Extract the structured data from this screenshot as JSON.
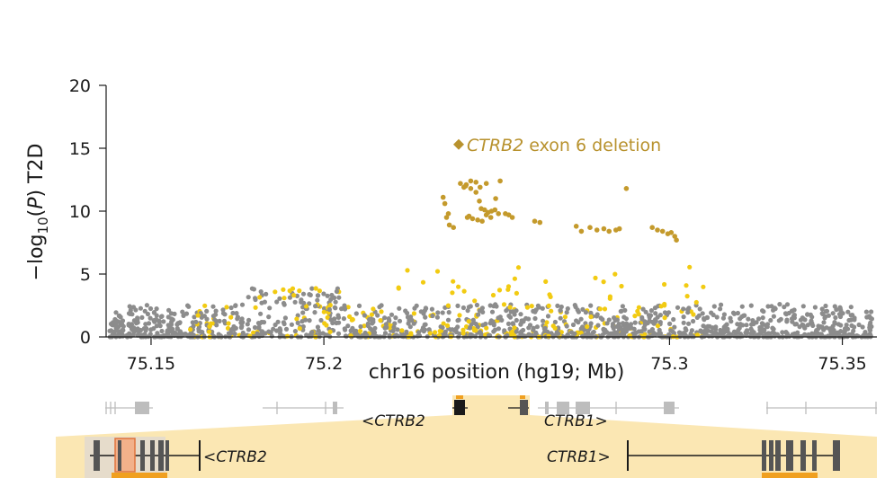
{
  "chart_data": {
    "type": "scatter",
    "xlabel": "chr16 position (hg19; Mb)",
    "ylabel_parts": {
      "prefix": "−log",
      "sub": "10",
      "paren_open": "(",
      "italic": "P",
      "suffix": ") T2D"
    },
    "xlim": [
      75.137,
      75.36
    ],
    "ylim": [
      0,
      20
    ],
    "xticks": [
      75.15,
      75.2,
      75.3,
      75.35
    ],
    "xtick_labels": [
      "75.15",
      "75.2",
      "75.3",
      "75.35"
    ],
    "yticks": [
      0,
      5,
      10,
      15,
      20
    ],
    "ytick_labels": [
      "0",
      "5",
      "10",
      "15",
      "20"
    ],
    "colors": {
      "background_variant": "#8c8c8c",
      "lowld_variant": "#f2cb12",
      "highld_variant": "#c49a2c",
      "annotation": "#b8922e",
      "gene_band": "#fbe7b3",
      "exon": "#555555"
    },
    "annotation": {
      "text_italic": "CTRB2",
      "text_rest": " exon 6 deletion",
      "x": 75.239,
      "y": 15.3
    },
    "highlighted_series": [
      {
        "x": [
          75.2345,
          75.235,
          75.2355,
          75.236,
          75.2363,
          75.2375,
          75.2395,
          75.241,
          75.2405,
          75.2412,
          75.2425,
          75.244,
          75.2452,
          75.247,
          75.2415,
          75.242,
          75.243,
          75.2445,
          75.245,
          75.2458,
          75.2465,
          75.2475,
          75.2485,
          75.2495,
          75.2505,
          75.2425,
          75.244,
          75.2455,
          75.247,
          75.2483,
          75.2497,
          75.251,
          75.2525,
          75.2545,
          75.2535,
          75.261,
          75.2625,
          75.273,
          75.2745,
          75.277,
          75.279,
          75.281,
          75.2825,
          75.2845,
          75.2855,
          75.2875,
          75.295,
          75.2965,
          75.298,
          75.2995,
          75.3005,
          75.3015,
          75.302
        ],
        "y": [
          11.1,
          10.6,
          9.5,
          9.8,
          8.9,
          8.7,
          12.2,
          12.0,
          11.9,
          12.1,
          11.8,
          12.3,
          11.9,
          12.2,
          9.5,
          9.6,
          9.4,
          9.3,
          10.8,
          9.2,
          10.1,
          9.9,
          10.0,
          10.1,
          9.8,
          12.4,
          11.5,
          10.2,
          9.7,
          9.5,
          11.0,
          12.4,
          9.8,
          9.5,
          9.7,
          9.2,
          9.1,
          8.8,
          8.4,
          8.7,
          8.5,
          8.6,
          8.4,
          8.5,
          8.6,
          11.8,
          8.7,
          8.5,
          8.4,
          8.2,
          8.3,
          8.0,
          7.7
        ]
      }
    ],
    "gene_track": {
      "labels": [
        "<CTRB2",
        "CTRB1>"
      ]
    },
    "zoom_track": {
      "labels": [
        "<CTRB2",
        "CTRB1>"
      ]
    }
  }
}
